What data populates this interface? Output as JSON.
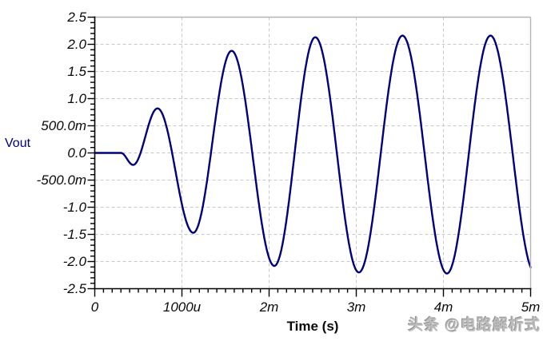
{
  "chart": {
    "series_label": "Vout",
    "series_label_color": "#00007e",
    "xlabel": "Time (s)",
    "y_tick_labels": [
      "2.5",
      "2.0",
      "1.5",
      "1.0",
      "500.0m",
      "0.0",
      "-500.0m",
      "-1.0",
      "-1.5",
      "-2.0",
      "-2.5"
    ],
    "x_tick_labels": [
      "0",
      "1000u",
      "2m",
      "3m",
      "4m",
      "5m"
    ]
  },
  "chart_data": {
    "type": "line",
    "title": "",
    "xlabel": "Time (s)",
    "ylabel": "Vout",
    "x_unit": "s",
    "y_unit": "V",
    "xlim_ms": [
      0,
      5
    ],
    "ylim_v": [
      -2.5,
      2.5
    ],
    "x_major_tick_ms": 1,
    "x_minor_tick_ms": 0.1,
    "y_major_tick_v": 0.5,
    "y_minor_tick_v": 0.1,
    "grid": true,
    "grid_style": "dashed",
    "legend_position": "left",
    "description": "Oscillator start-up transient: output sits at 0 V until about 0.3 ms, then a ~1 kHz sine wave grows and saturates near +/-2.2 V",
    "series": [
      {
        "name": "Vout",
        "color": "#00007e",
        "flat_until_ms": 0.3,
        "extrema_t_ms_v": [
          [
            0.3,
            0.0
          ],
          [
            0.44,
            -0.22
          ],
          [
            0.72,
            0.82
          ],
          [
            1.13,
            -1.47
          ],
          [
            1.57,
            1.88
          ],
          [
            2.06,
            -2.08
          ],
          [
            2.53,
            2.13
          ],
          [
            3.03,
            -2.2
          ],
          [
            3.53,
            2.16
          ],
          [
            4.04,
            -2.22
          ],
          [
            4.54,
            2.16
          ],
          [
            5.05,
            -2.21
          ]
        ],
        "approx_period_ms": 1.0,
        "end_value_v_at_5ms": -2.1
      }
    ]
  },
  "colors": {
    "trace": "#00007e",
    "grid": "#c8c8c8",
    "axis": "#000000",
    "frame_light": "#b4b4b4",
    "tick_label": "#0a0a0a"
  },
  "watermark": {
    "text": "头条 @电路解析式"
  }
}
